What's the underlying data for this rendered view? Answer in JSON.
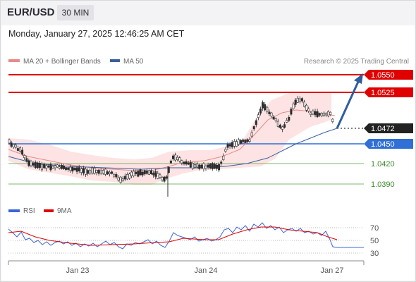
{
  "header": {
    "symbol": "EUR/USD",
    "timeframe": "30 MIN",
    "datetime": "Monday, January 27, 2025 12:46:25 AM CET"
  },
  "legend": {
    "ma20_label": "MA 20 + Bollinger Bands",
    "ma50_label": "MA 50",
    "copyright": "Research © 2025 Trading Central",
    "rsi_label": "RSI",
    "rsi_ma_label": "9MA"
  },
  "colors": {
    "resistance": "#e00000",
    "support": "#4a8f3a",
    "pivot": "#2f6fd6",
    "ma20": "#e88a8a",
    "ma50": "#3a5fa0",
    "band_fill": "#fde3e3",
    "arrow": "#2f5d9e",
    "rsi": "#3c64d8",
    "rsi_ma": "#e00000"
  },
  "levels": [
    {
      "value": "1.0550",
      "kind": "resistance"
    },
    {
      "value": "1.0525",
      "kind": "resistance"
    },
    {
      "value": "1.0472",
      "kind": "current"
    },
    {
      "value": "1.0450",
      "kind": "pivot"
    },
    {
      "value": "1.0420",
      "kind": "support"
    },
    {
      "value": "1.0390",
      "kind": "support"
    }
  ],
  "rsi_axis": [
    "70",
    "50",
    "30"
  ],
  "x_axis": [
    "Jan 23",
    "Jan 24",
    "Jan 27"
  ]
}
